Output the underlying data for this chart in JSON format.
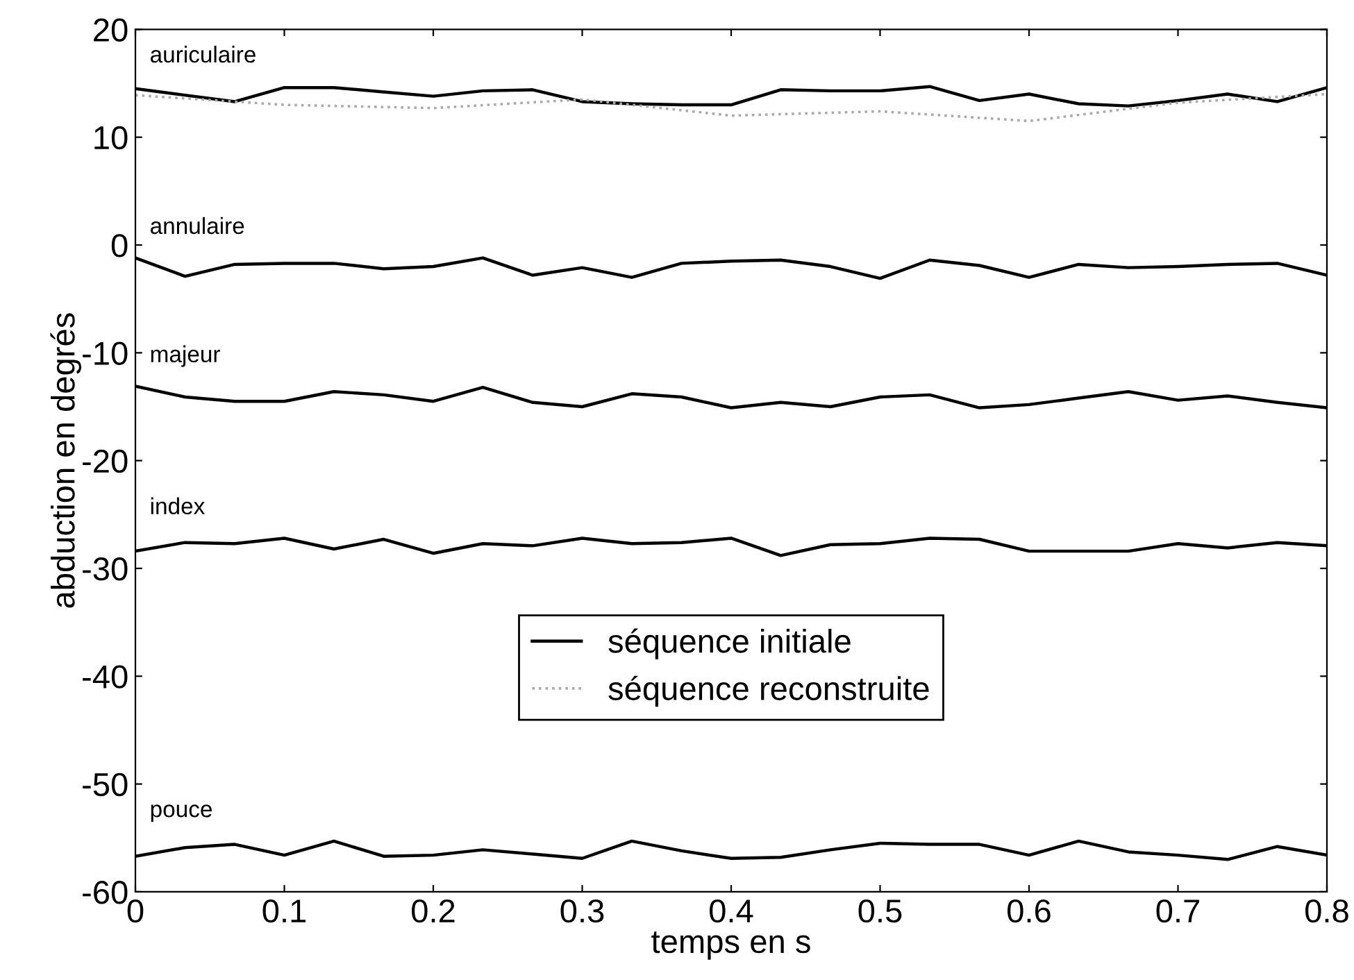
{
  "chart_data": {
    "type": "line",
    "xlabel": "temps en s",
    "ylabel": "abduction en degrés",
    "x": [
      0,
      0.0333,
      0.0667,
      0.1,
      0.1333,
      0.1667,
      0.2,
      0.2333,
      0.2667,
      0.3,
      0.3333,
      0.3667,
      0.4,
      0.4333,
      0.4667,
      0.5,
      0.5333,
      0.5667,
      0.6,
      0.6333,
      0.6667,
      0.7,
      0.7333,
      0.7667,
      0.8
    ],
    "series": [
      {
        "name": "séquence initiale",
        "color": "#000000",
        "line_style": "solid",
        "values": [
          14.5,
          13.9,
          13.3,
          14.6,
          14.6,
          14.2,
          13.8,
          14.3,
          14.4,
          13.3,
          13.1,
          13.0,
          13.0,
          14.4,
          14.3,
          14.3,
          14.7,
          13.4,
          14.0,
          13.1,
          12.9,
          13.4,
          14.0,
          13.3,
          14.6
        ]
      },
      {
        "color": "#000000",
        "line_style": "solid",
        "values": [
          -1.2,
          -2.9,
          -1.8,
          -1.7,
          -1.7,
          -2.2,
          -2.0,
          -1.2,
          -2.8,
          -2.1,
          -3.0,
          -1.7,
          -1.5,
          -1.4,
          -2.0,
          -3.1,
          -1.4,
          -1.9,
          -3.0,
          -1.8,
          -2.1,
          -2.0,
          -1.8,
          -1.7,
          -2.8
        ]
      },
      {
        "color": "#000000",
        "line_style": "solid",
        "values": [
          -13.1,
          -14.1,
          -14.5,
          -14.5,
          -13.6,
          -13.9,
          -14.5,
          -13.2,
          -14.6,
          -15.0,
          -13.8,
          -14.1,
          -15.1,
          -14.6,
          -15.0,
          -14.1,
          -13.9,
          -15.1,
          -14.8,
          -14.2,
          -13.6,
          -14.4,
          -14.0,
          -14.6,
          -15.1
        ]
      },
      {
        "color": "#000000",
        "line_style": "solid",
        "values": [
          -28.4,
          -27.6,
          -27.7,
          -27.2,
          -28.2,
          -27.3,
          -28.6,
          -27.7,
          -27.9,
          -27.2,
          -27.7,
          -27.6,
          -27.2,
          -28.8,
          -27.8,
          -27.7,
          -27.2,
          -27.3,
          -28.4,
          -28.4,
          -28.4,
          -27.7,
          -28.1,
          -27.6,
          -27.9
        ]
      },
      {
        "color": "#000000",
        "line_style": "solid",
        "values": [
          -56.7,
          -55.9,
          -55.6,
          -56.6,
          -55.3,
          -56.7,
          -56.6,
          -56.1,
          -56.5,
          -56.9,
          -55.3,
          -56.2,
          -56.9,
          -56.8,
          -56.1,
          -55.5,
          -55.6,
          -55.6,
          -56.6,
          -55.3,
          -56.3,
          -56.6,
          -57.0,
          -55.8,
          -56.6
        ]
      },
      {
        "name": "séquence reconstruite",
        "color": "#aaaaaa",
        "line_style": "dotted",
        "x": [
          0,
          0.1,
          0.2,
          0.3,
          0.4,
          0.5,
          0.6,
          0.7,
          0.8
        ],
        "values": [
          13.9,
          13.0,
          12.7,
          13.5,
          12.0,
          12.4,
          11.5,
          13.2,
          14.0
        ]
      }
    ],
    "annotations": [
      "auriculaire",
      "annulaire",
      "majeur",
      "index",
      "pouce"
    ],
    "xlim": [
      0,
      0.8
    ],
    "xticks": [
      0,
      0.1,
      0.2,
      0.3,
      0.4,
      0.5,
      0.6,
      0.7,
      0.8
    ],
    "ylim": [
      -60,
      20
    ],
    "yticks": [
      -60,
      -50,
      -40,
      -30,
      -20,
      -10,
      0,
      10,
      20
    ],
    "grid": false,
    "legend": "center"
  }
}
